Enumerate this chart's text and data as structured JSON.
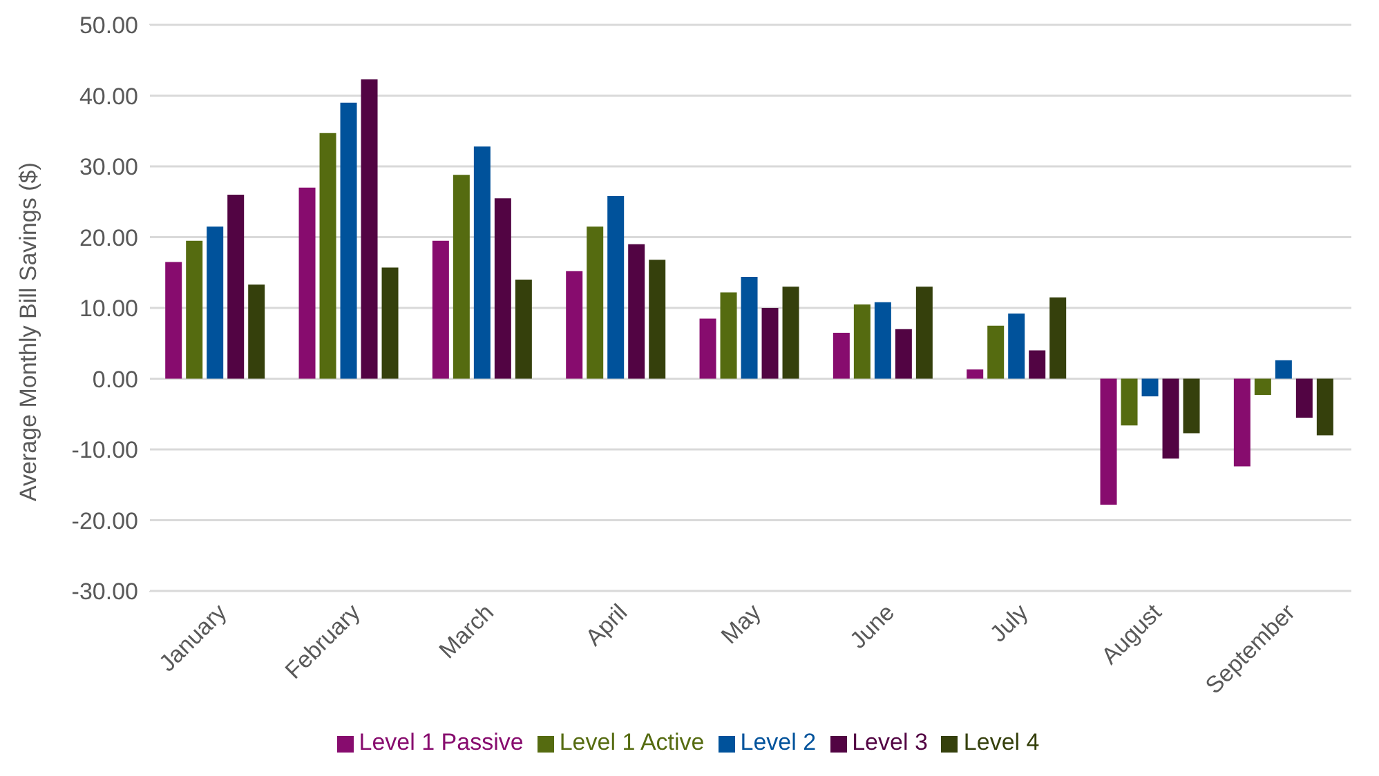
{
  "chart_data": {
    "type": "bar",
    "ylabel": "Average Monthly Bill Savings ($)",
    "categories": [
      "January",
      "February",
      "March",
      "April",
      "May",
      "June",
      "July",
      "August",
      "September"
    ],
    "series": [
      {
        "name": "Level 1 Passive",
        "color": "#870c6e",
        "values": [
          16.5,
          27,
          19.5,
          15.2,
          8.5,
          6.5,
          1.3,
          -17.8,
          -12.4
        ]
      },
      {
        "name": "Level 1 Active",
        "color": "#556b10",
        "values": [
          19.5,
          34.7,
          28.8,
          21.5,
          12.2,
          10.5,
          7.5,
          -6.6,
          -2.3
        ]
      },
      {
        "name": "Level 2",
        "color": "#00529b",
        "values": [
          21.5,
          39,
          32.8,
          25.8,
          14.4,
          10.8,
          9.2,
          -2.5,
          2.6
        ]
      },
      {
        "name": "Level 3",
        "color": "#520443",
        "values": [
          26,
          42.3,
          25.5,
          19,
          10,
          7,
          4,
          -11.3,
          -5.5
        ]
      },
      {
        "name": "Level 4",
        "color": "#35400c",
        "values": [
          13.3,
          15.7,
          14,
          16.8,
          13,
          13,
          11.5,
          -7.7,
          -8
        ]
      }
    ],
    "ylim": [
      -30,
      50
    ],
    "yticks": [
      {
        "value": -30,
        "label": "-30.00"
      },
      {
        "value": -20,
        "label": "-20.00"
      },
      {
        "value": -10,
        "label": "-10.00"
      },
      {
        "value": 0,
        "label": "0.00"
      },
      {
        "value": 10,
        "label": "10.00"
      },
      {
        "value": 20,
        "label": "20.00"
      },
      {
        "value": 30,
        "label": "30.00"
      },
      {
        "value": 40,
        "label": "40.00"
      },
      {
        "value": 50,
        "label": "50.00"
      }
    ],
    "grid": "y",
    "legend": "bottom"
  }
}
